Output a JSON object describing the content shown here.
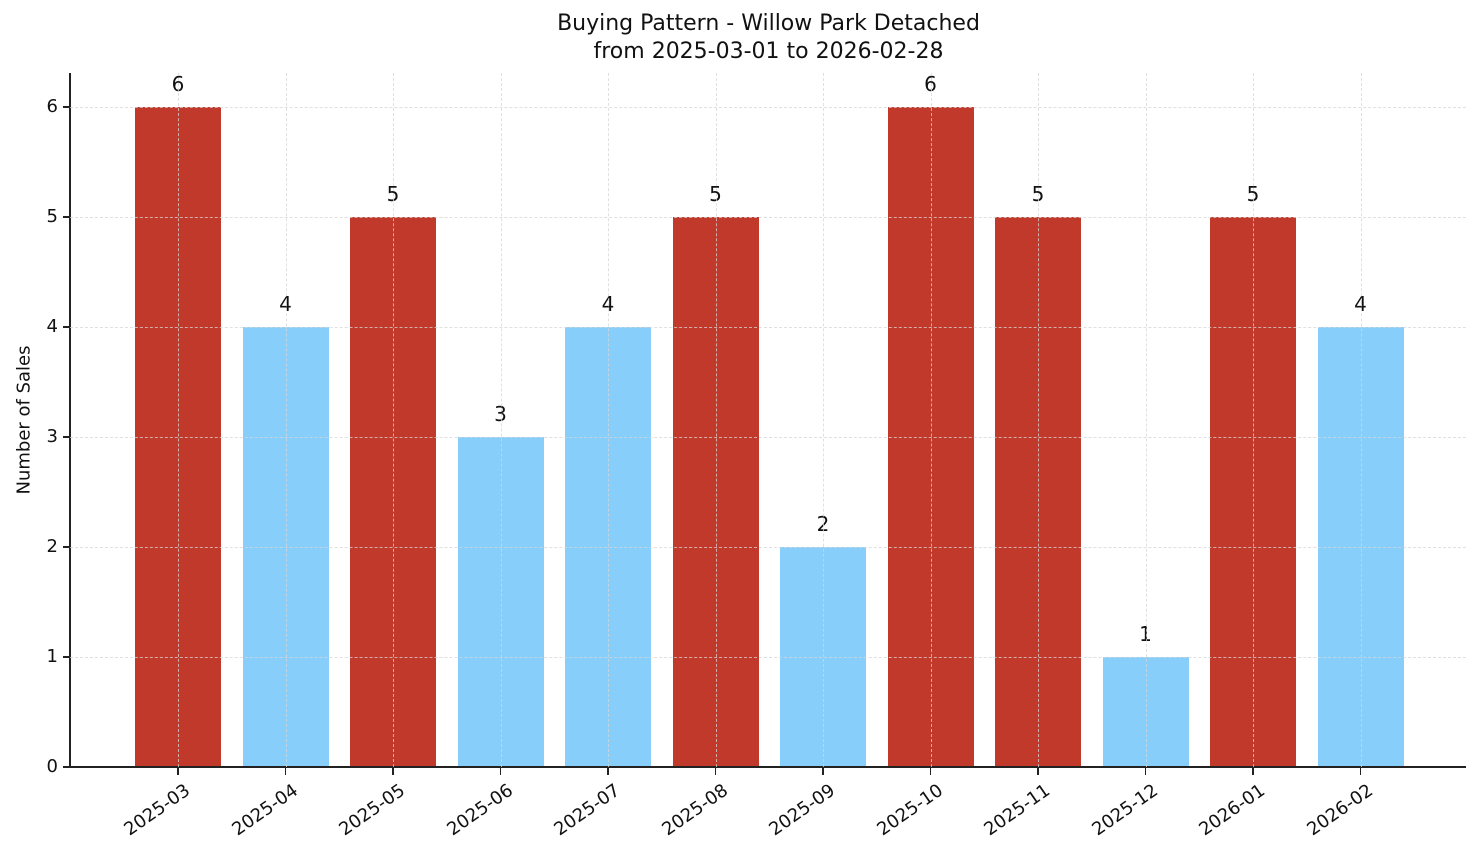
{
  "chart_data": {
    "type": "bar",
    "title": "Buying Pattern - Willow Park Detached",
    "subtitle": "from 2025-03-01 to 2026-02-28",
    "xlabel": "",
    "ylabel": "Number of Sales",
    "ylim": [
      0,
      6.3
    ],
    "yticks": [
      "0",
      "1",
      "2",
      "3",
      "4",
      "5",
      "6"
    ],
    "grid": true,
    "categories": [
      "2025-03",
      "2025-04",
      "2025-05",
      "2025-06",
      "2025-07",
      "2025-08",
      "2025-09",
      "2025-10",
      "2025-11",
      "2025-12",
      "2026-01",
      "2026-02"
    ],
    "values": [
      6,
      4,
      5,
      3,
      4,
      5,
      2,
      6,
      5,
      1,
      5,
      4
    ],
    "data_labels": [
      "6",
      "4",
      "5",
      "3",
      "4",
      "5",
      "2",
      "6",
      "5",
      "1",
      "5",
      "4"
    ],
    "colors": [
      "#c0392b",
      "#87cefa",
      "#c0392b",
      "#87cefa",
      "#87cefa",
      "#c0392b",
      "#87cefa",
      "#c0392b",
      "#c0392b",
      "#87cefa",
      "#c0392b",
      "#87cefa"
    ],
    "color_legend": {
      "high": "#c0392b",
      "low": "#87cefa"
    }
  }
}
